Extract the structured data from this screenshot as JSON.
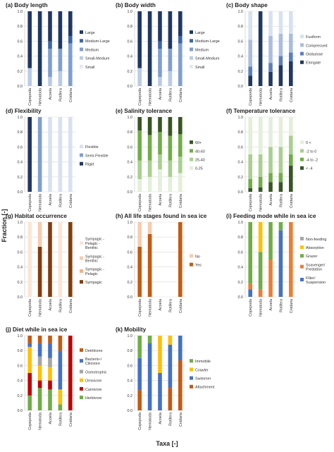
{
  "figure": {
    "ylabel": "Fraction [-]",
    "xlabel": "Taxa [-]"
  },
  "chart_data": [
    {
      "type": "bar",
      "stacked": true,
      "title": "(a) Body length",
      "categories": [
        "Copepoda",
        "Nematoda",
        "Acoela",
        "Rotifera",
        "Cnidaria"
      ],
      "ylim": [
        0,
        1
      ],
      "yticks": [
        "0.0",
        "0.2",
        "0.4",
        "0.6",
        "0.8",
        "1.0"
      ],
      "grid": true,
      "legend": "right",
      "series": [
        {
          "name": "Small",
          "color": "#e3e9f4",
          "values": [
            0,
            0,
            0,
            0,
            0
          ]
        },
        {
          "name": "Small-Medium",
          "color": "#b9cbe6",
          "values": [
            0.24,
            0,
            0.12,
            0.2,
            0
          ]
        },
        {
          "name": "Medium",
          "color": "#7f9fd1",
          "values": [
            0,
            0,
            0.38,
            0.3,
            0.57
          ]
        },
        {
          "name": "Medium-Large",
          "color": "#3d66a8",
          "values": [
            0,
            0,
            0.1,
            0,
            0.1
          ]
        },
        {
          "name": "Large",
          "color": "#1f3864",
          "values": [
            0.76,
            1.0,
            0.4,
            0.5,
            0.33
          ]
        }
      ]
    },
    {
      "type": "bar",
      "stacked": true,
      "title": "(b) Body width",
      "categories": [
        "Copepoda",
        "Nematoda",
        "Acoela",
        "Rotifera",
        "Cnidaria"
      ],
      "ylim": [
        0,
        1
      ],
      "yticks": [
        "0.0",
        "0.2",
        "0.4",
        "0.6",
        "0.8",
        "1.0"
      ],
      "grid": true,
      "legend": "right",
      "series": [
        {
          "name": "Small",
          "color": "#e3e9f4",
          "values": [
            0,
            0,
            0,
            0,
            0
          ]
        },
        {
          "name": "Small-Medium",
          "color": "#b9cbe6",
          "values": [
            0.24,
            0,
            0.12,
            0.2,
            0
          ]
        },
        {
          "name": "Medium",
          "color": "#7f9fd1",
          "values": [
            0,
            0,
            0.38,
            0.3,
            0.57
          ]
        },
        {
          "name": "Medium-Large",
          "color": "#3d66a8",
          "values": [
            0,
            0,
            0.1,
            0,
            0.1
          ]
        },
        {
          "name": "Large",
          "color": "#1f3864",
          "values": [
            0.76,
            1.0,
            0.4,
            0.5,
            0.33
          ]
        }
      ]
    },
    {
      "type": "bar",
      "stacked": true,
      "title": "(c) Body shape",
      "categories": [
        "Copepoda",
        "Nematoda",
        "Acoela",
        "Rotifera",
        "Cnidaria"
      ],
      "ylim": [
        0,
        1
      ],
      "yticks": [
        "0.0",
        "0.2",
        "0.4",
        "0.6",
        "0.8",
        "1.0"
      ],
      "grid": true,
      "legend": "right",
      "series": [
        {
          "name": "Elongate",
          "color": "#1f3864",
          "values": [
            0.14,
            1.0,
            0.19,
            0.28,
            0.33
          ]
        },
        {
          "name": "Globulose",
          "color": "#5b7fbd",
          "values": [
            0.12,
            0,
            0.12,
            0.12,
            0.12
          ]
        },
        {
          "name": "Compressed",
          "color": "#a9bde0",
          "values": [
            0.36,
            0,
            0.36,
            0.3,
            0.25
          ]
        },
        {
          "name": "Fusiform",
          "color": "#d8e1f0",
          "values": [
            0.38,
            0,
            0.33,
            0.3,
            0.3
          ]
        }
      ]
    },
    {
      "type": "bar",
      "stacked": true,
      "title": "(d) Flexibility",
      "categories": [
        "Copepoda",
        "Nematoda",
        "Acoela",
        "Rotifera",
        "Cnidaria"
      ],
      "ylim": [
        0,
        1
      ],
      "yticks": [
        "0.0",
        "0.2",
        "0.4",
        "0.6",
        "0.8",
        "1.0"
      ],
      "grid": true,
      "legend": "right",
      "series": [
        {
          "name": "Rigid",
          "color": "#1f3864",
          "values": [
            1.0,
            0,
            0,
            0,
            0
          ]
        },
        {
          "name": "Semi-Flexible",
          "color": "#7f9fd1",
          "values": [
            0,
            1.0,
            0,
            0,
            0
          ]
        },
        {
          "name": "Flexible",
          "color": "#d8e1f0",
          "values": [
            0,
            0,
            1.0,
            1.0,
            1.0
          ]
        }
      ]
    },
    {
      "type": "bar",
      "stacked": true,
      "title": "(e) Salinity tolerance",
      "categories": [
        "Copepoda",
        "Nematoda",
        "Acoela",
        "Rotifera",
        "Cnidaria"
      ],
      "ylim": [
        0,
        1
      ],
      "yticks": [
        "0.0",
        "0.2",
        "0.4",
        "0.6",
        "0.8",
        "1.0"
      ],
      "grid": true,
      "legend": "right",
      "series": [
        {
          "name": "0-25",
          "color": "#e2efd9",
          "values": [
            0.17,
            0.2,
            0.3,
            0.2,
            0.25
          ]
        },
        {
          "name": "25-40",
          "color": "#a9d08e",
          "values": [
            0.25,
            0.22,
            0.2,
            0.22,
            0.22
          ]
        },
        {
          "name": "40-60",
          "color": "#70ad47",
          "values": [
            0.4,
            0.34,
            0.3,
            0.33,
            0.3
          ]
        },
        {
          "name": "60+",
          "color": "#375623",
          "values": [
            0.18,
            0.24,
            0.2,
            0.25,
            0.23
          ]
        }
      ]
    },
    {
      "type": "bar",
      "stacked": true,
      "title": "(f) Temperature tolerance",
      "categories": [
        "Copepoda",
        "Nematoda",
        "Acoela",
        "Rotifera",
        "Cnidaria"
      ],
      "ylim": [
        0,
        1
      ],
      "yticks": [
        "0.0",
        "0.2",
        "0.4",
        "0.6",
        "0.8",
        "1.0"
      ],
      "grid": true,
      "legend": "right",
      "series": [
        {
          "name": "< -4",
          "color": "#375623",
          "values": [
            0.05,
            0.06,
            0.13,
            0.13,
            0.35
          ]
        },
        {
          "name": "-4 to -2",
          "color": "#70ad47",
          "values": [
            0.12,
            0.14,
            0.12,
            0.12,
            0.15
          ]
        },
        {
          "name": "-2 to 0",
          "color": "#a9d08e",
          "values": [
            0.33,
            0.3,
            0.35,
            0.35,
            0.25
          ]
        },
        {
          "name": "0 <",
          "color": "#e2efd9",
          "values": [
            0.5,
            0.5,
            0.4,
            0.4,
            0.25
          ]
        }
      ]
    },
    {
      "type": "bar",
      "stacked": true,
      "title": "(g) Habitat occurrence",
      "categories": [
        "Copepoda",
        "Nematoda",
        "Acoela",
        "Rotifera",
        "Cnidaria"
      ],
      "ylim": [
        0,
        1
      ],
      "yticks": [
        "0.0",
        "0.2",
        "0.4",
        "0.6",
        "0.8",
        "1.0"
      ],
      "grid": true,
      "legend": "right",
      "series": [
        {
          "name": "Sympagic",
          "color": "#843c0c",
          "values": [
            0,
            0.67,
            1.0,
            0,
            1.0
          ]
        },
        {
          "name": "Sympagic - Pelagic",
          "color": "#f4b183",
          "values": [
            0,
            0,
            0,
            0,
            0
          ]
        },
        {
          "name": "Sympagic - Benthic",
          "color": "#f8cbad",
          "values": [
            0,
            0.33,
            0,
            0,
            0
          ]
        },
        {
          "name": "Sympagic - Pelagic - Benthic",
          "color": "#fbe5d6",
          "values": [
            1.0,
            0,
            0,
            1.0,
            0
          ]
        }
      ]
    },
    {
      "type": "bar",
      "stacked": true,
      "title": "(h) All life stages found in sea ice",
      "categories": [
        "Copepoda",
        "Nematoda",
        "Acoela",
        "Rotifera",
        "Cnidaria"
      ],
      "ylim": [
        0,
        1
      ],
      "yticks": [
        "0.0",
        "0.2",
        "0.4",
        "0.6",
        "0.8",
        "1.0"
      ],
      "grid": true,
      "legend": "right",
      "series": [
        {
          "name": "Yes",
          "color": "#c55a11",
          "values": [
            0.67,
            0.84,
            0,
            0,
            1.0
          ]
        },
        {
          "name": "No",
          "color": "#f8cbad",
          "values": [
            0.33,
            0.16,
            0,
            0,
            0
          ]
        }
      ]
    },
    {
      "type": "bar",
      "stacked": true,
      "title": "(i) Feeding mode while in sea ice",
      "categories": [
        "Copepoda",
        "Nematoda",
        "Acoela",
        "Rotifera",
        "Cnidaria"
      ],
      "ylim": [
        0,
        1
      ],
      "yticks": [
        "0.0",
        "0.2",
        "0.4",
        "0.6",
        "0.8",
        "1.0"
      ],
      "grid": true,
      "legend": "right",
      "series": [
        {
          "name": "Filter/ Suspension",
          "color": "#4472c4",
          "values": [
            0.1,
            0,
            0,
            0.89,
            0
          ]
        },
        {
          "name": "Scavenger/ Predation",
          "color": "#ed7d31",
          "values": [
            0.08,
            0.1,
            0.5,
            0,
            1.0
          ]
        },
        {
          "name": "Grazer",
          "color": "#70ad47",
          "values": [
            0.82,
            0.5,
            0.5,
            0.11,
            0
          ]
        },
        {
          "name": "Absorption",
          "color": "#ffc000",
          "values": [
            0,
            0.4,
            0,
            0,
            0
          ]
        },
        {
          "name": "Non-feeding",
          "color": "#a5a5a5",
          "values": [
            0,
            0,
            0,
            0,
            0
          ]
        }
      ]
    },
    {
      "type": "bar",
      "stacked": true,
      "title": "(j) Diet while in sea ice",
      "categories": [
        "Copepoda",
        "Nematoda",
        "Acoela",
        "Rotifera",
        "Cnidaria"
      ],
      "ylim": [
        0,
        1
      ],
      "yticks": [
        "0.0",
        "0.2",
        "0.4",
        "0.6",
        "0.8",
        "1.0"
      ],
      "grid": true,
      "legend": "right",
      "series": [
        {
          "name": "Herbivore",
          "color": "#70ad47",
          "values": [
            0.2,
            0.3,
            0.28,
            0.08,
            0
          ]
        },
        {
          "name": "Carnivore",
          "color": "#c00000",
          "values": [
            0.3,
            0.1,
            0.12,
            0,
            1.0
          ]
        },
        {
          "name": "Omnivore",
          "color": "#ffc000",
          "values": [
            0.35,
            0.2,
            0.18,
            0.2,
            0
          ]
        },
        {
          "name": "Osmotrophic",
          "color": "#a5a5a5",
          "values": [
            0,
            0.12,
            0.12,
            0,
            0
          ]
        },
        {
          "name": "Bacterio-/ Ciliovore",
          "color": "#4472c4",
          "values": [
            0.05,
            0.18,
            0.2,
            0.52,
            0
          ]
        },
        {
          "name": "Detritivore",
          "color": "#c55a11",
          "values": [
            0.1,
            0.1,
            0.1,
            0.2,
            0
          ]
        }
      ]
    },
    {
      "type": "bar",
      "stacked": true,
      "title": "(k) Mobility",
      "categories": [
        "Copepoda",
        "Nematoda",
        "Acoela",
        "Rotifera",
        "Cnidaria"
      ],
      "ylim": [
        0,
        1
      ],
      "yticks": [
        "0.0",
        "0.2",
        "0.4",
        "0.6",
        "0.8",
        "1.0"
      ],
      "grid": true,
      "legend": "right",
      "series": [
        {
          "name": "Attachment",
          "color": "#c55a11",
          "values": [
            0.27,
            0,
            0,
            0.3,
            0.67
          ]
        },
        {
          "name": "Swimmer",
          "color": "#4472c4",
          "values": [
            0.43,
            0.9,
            0.5,
            0.58,
            0.33
          ]
        },
        {
          "name": "Crawler",
          "color": "#ffc000",
          "values": [
            0,
            0,
            0.5,
            0.12,
            0
          ]
        },
        {
          "name": "Immobile",
          "color": "#70ad47",
          "values": [
            0.3,
            0.1,
            0,
            0,
            0
          ]
        }
      ]
    }
  ]
}
